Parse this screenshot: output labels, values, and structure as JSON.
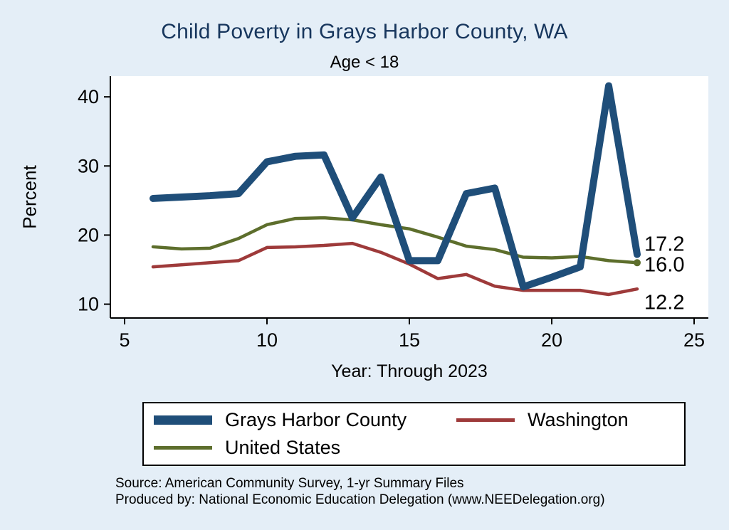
{
  "title": "Child Poverty in Grays Harbor County, WA",
  "subtitle": "Age < 18",
  "ylabel": "Percent",
  "xlabel": "Year: Through 2023",
  "source_line1": "Source: American Community Survey, 1-yr Summary Files",
  "source_line2": "Produced by: National Economic Education Delegation (www.NEEDelegation.org)",
  "colors": {
    "background": "#e4eef7",
    "plot_background": "#ffffff",
    "title_text": "#17365d",
    "axis": "#000000",
    "county": "#1f4e79",
    "washington": "#9e3a3a",
    "united_states": "#5d6e2c"
  },
  "end_labels": {
    "county": "17.2",
    "us": "16.0",
    "washington": "12.2"
  },
  "legend": {
    "items": [
      {
        "label": "Grays Harbor County",
        "color": "#1f4e79",
        "thick": true
      },
      {
        "label": "Washington",
        "color": "#9e3a3a",
        "thick": false
      },
      {
        "label": "United States",
        "color": "#5d6e2c",
        "thick": false
      }
    ]
  },
  "chart_data": {
    "type": "line",
    "title": "Child Poverty in Grays Harbor County, WA",
    "subtitle": "Age < 18",
    "xlabel": "Year: Through 2023",
    "ylabel": "Percent",
    "xlim": [
      4.5,
      25.5
    ],
    "ylim": [
      8,
      43
    ],
    "xticks": [
      5,
      10,
      15,
      20,
      25
    ],
    "yticks": [
      10,
      20,
      30,
      40
    ],
    "grid": false,
    "legend_position": "bottom",
    "x": [
      6,
      7,
      8,
      9,
      10,
      11,
      12,
      13,
      14,
      15,
      16,
      17,
      18,
      19,
      20,
      21,
      22,
      23
    ],
    "series": [
      {
        "name": "Grays Harbor County",
        "color": "#1f4e79",
        "width": 10,
        "values": [
          25.3,
          25.5,
          25.7,
          26.0,
          30.6,
          31.4,
          31.6,
          22.5,
          28.4,
          16.3,
          16.3,
          26.0,
          26.8,
          12.5,
          13.9,
          15.4,
          41.6,
          17.2
        ]
      },
      {
        "name": "Washington",
        "color": "#9e3a3a",
        "width": 4.5,
        "values": [
          15.4,
          15.7,
          16.0,
          16.3,
          18.2,
          18.3,
          18.5,
          18.8,
          17.5,
          15.8,
          13.7,
          14.3,
          12.6,
          12.0,
          12.0,
          12.0,
          11.4,
          12.2
        ]
      },
      {
        "name": "United States",
        "color": "#5d6e2c",
        "width": 4.5,
        "values": [
          18.3,
          18.0,
          18.1,
          19.5,
          21.5,
          22.4,
          22.5,
          22.2,
          21.5,
          20.9,
          19.7,
          18.4,
          17.9,
          16.8,
          16.7,
          16.9,
          16.3,
          16.0
        ]
      }
    ]
  }
}
